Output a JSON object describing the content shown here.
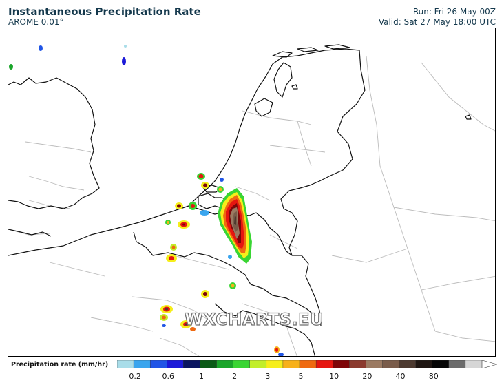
{
  "header": {
    "title": "Instantaneous Precipitation Rate",
    "model": "AROME 0.01°",
    "run": "Run: Fri 26 May 00Z",
    "valid": "Valid: Sat 27 May 18:00 UTC"
  },
  "watermark": {
    "text": "WXCHARTS.EU"
  },
  "legend": {
    "label": "Precipitation rate (mm/hr)",
    "ticks": [
      "0.2",
      "0.6",
      "1",
      "2",
      "3",
      "5",
      "10",
      "20",
      "40",
      "80"
    ],
    "colors": [
      "#a9dde9",
      "#3aa5ee",
      "#2155e6",
      "#1c1ad8",
      "#0a1560",
      "#0a5a16",
      "#1aa52a",
      "#39d533",
      "#c2ee2a",
      "#f6ee1b",
      "#f7b11a",
      "#ef6a11",
      "#e61610",
      "#7e0508",
      "#8b3a2e",
      "#9b7a62",
      "#7a5c4a",
      "#4d3a30",
      "#1f1612",
      "#050505",
      "#6b6b6b",
      "#d6d6d6"
    ]
  }
}
